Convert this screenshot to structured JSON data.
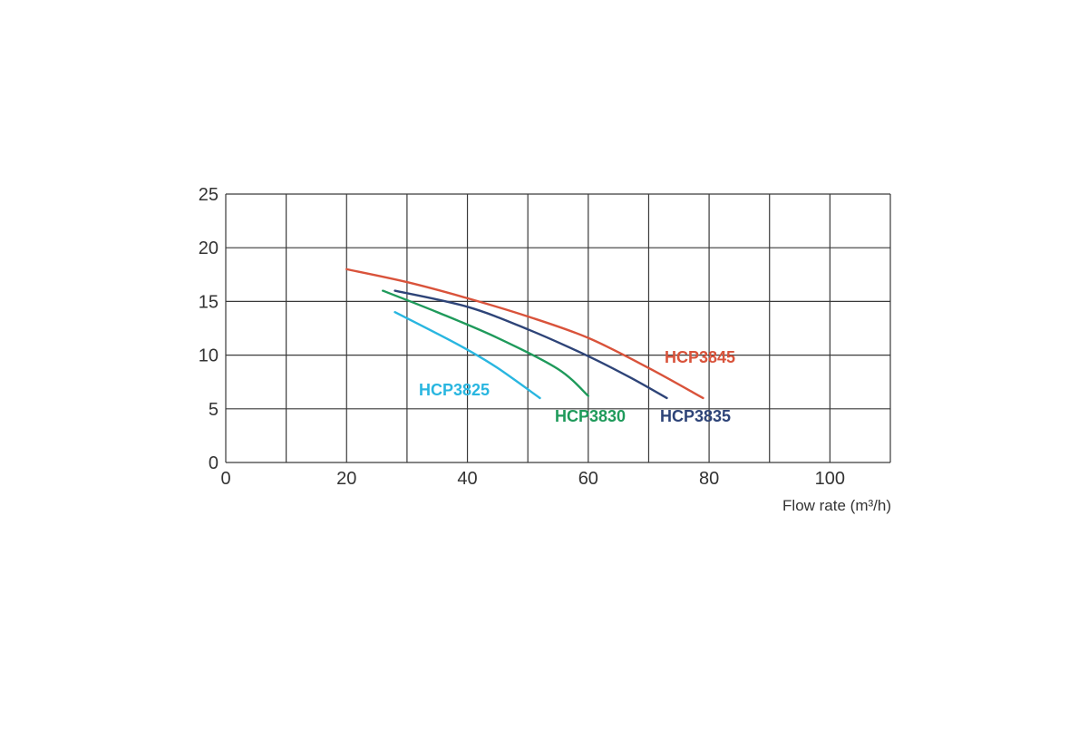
{
  "chart_data": {
    "type": "line",
    "title": "",
    "xlabel": "Flow rate (m³/h)",
    "ylabel": "",
    "xlim": [
      0,
      110
    ],
    "ylim": [
      0,
      25
    ],
    "x_ticks": [
      0,
      20,
      40,
      60,
      80,
      100
    ],
    "y_ticks": [
      0,
      5,
      10,
      15,
      20,
      25
    ],
    "grid": true,
    "grid_x_step": 10,
    "grid_y_step": 5,
    "series": [
      {
        "name": "HCP3845",
        "color": "#d9533b",
        "points": [
          [
            20,
            18
          ],
          [
            30,
            16.8
          ],
          [
            40,
            15.3
          ],
          [
            50,
            13.6
          ],
          [
            60,
            11.6
          ],
          [
            70,
            8.8
          ],
          [
            79,
            6
          ]
        ]
      },
      {
        "name": "HCP3835",
        "color": "#2e4478",
        "points": [
          [
            28,
            16
          ],
          [
            40,
            14.5
          ],
          [
            50,
            12.4
          ],
          [
            60,
            9.9
          ],
          [
            67,
            7.9
          ],
          [
            73,
            6
          ]
        ]
      },
      {
        "name": "HCP3830",
        "color": "#1f9a5b",
        "points": [
          [
            26,
            16
          ],
          [
            35,
            14
          ],
          [
            45,
            11.6
          ],
          [
            55,
            8.7
          ],
          [
            60,
            6.2
          ]
        ]
      },
      {
        "name": "HCP3825",
        "color": "#29b6e0",
        "points": [
          [
            28,
            14
          ],
          [
            35,
            12
          ],
          [
            40,
            10.5
          ],
          [
            45,
            8.8
          ],
          [
            52,
            6
          ]
        ]
      }
    ]
  }
}
